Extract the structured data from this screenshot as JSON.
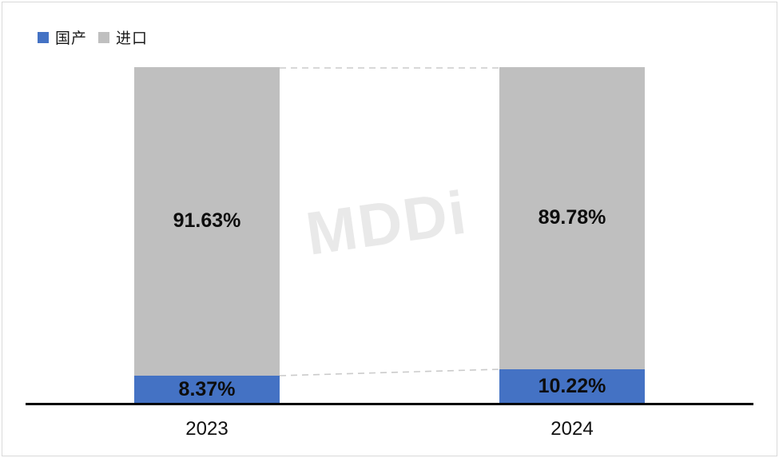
{
  "chart_data": {
    "type": "bar",
    "subtype": "stacked-100-percent",
    "title": "",
    "xlabel": "",
    "ylabel": "",
    "ylim": [
      0,
      100
    ],
    "grid": false,
    "legend_position": "top-left",
    "categories": [
      "2023",
      "2024"
    ],
    "series": [
      {
        "name": "国产",
        "color": "#4472C4",
        "values": [
          8.37,
          10.22
        ]
      },
      {
        "name": "进口",
        "color": "#BFBFBF",
        "values": [
          91.63,
          89.78
        ]
      }
    ],
    "bars": [
      {
        "category": "2023",
        "imported": 91.63,
        "imported_label": "91.63%",
        "domestic": 8.37,
        "domestic_label": "8.37%"
      },
      {
        "category": "2024",
        "imported": 89.78,
        "imported_label": "89.78%",
        "domestic": 10.22,
        "domestic_label": "10.22%"
      }
    ]
  },
  "legend": {
    "items": [
      {
        "label": "国产",
        "color": "#4472C4"
      },
      {
        "label": "进口",
        "color": "#BFBFBF"
      }
    ]
  },
  "watermark": {
    "text": "MDDi",
    "color": "#e9e9e9"
  },
  "colors": {
    "domestic_blue": "#4472C4",
    "imported_gray": "#BFBFBF",
    "axis": "#000000",
    "connector_dash": "#cbcbcb",
    "frame_border": "#d9d9d9"
  }
}
